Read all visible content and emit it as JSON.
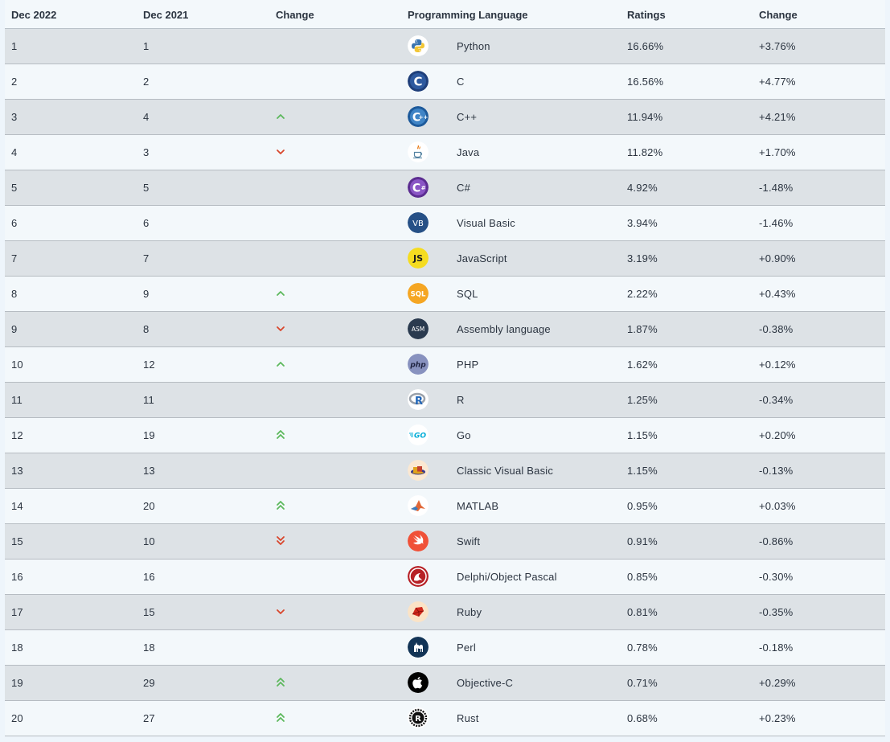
{
  "headers": {
    "rank_now": "Dec 2022",
    "rank_prev": "Dec 2021",
    "trend": "Change",
    "language": "Programming Language",
    "ratings": "Ratings",
    "change": "Change"
  },
  "rows": [
    {
      "rank_now": "1",
      "rank_prev": "1",
      "trend": "none",
      "icon": "python-icon",
      "language": "Python",
      "ratings": "16.66%",
      "change": "+3.76%"
    },
    {
      "rank_now": "2",
      "rank_prev": "2",
      "trend": "none",
      "icon": "c-icon",
      "language": "C",
      "ratings": "16.56%",
      "change": "+4.77%"
    },
    {
      "rank_now": "3",
      "rank_prev": "4",
      "trend": "up",
      "icon": "cpp-icon",
      "language": "C++",
      "ratings": "11.94%",
      "change": "+4.21%"
    },
    {
      "rank_now": "4",
      "rank_prev": "3",
      "trend": "down",
      "icon": "java-icon",
      "language": "Java",
      "ratings": "11.82%",
      "change": "+1.70%"
    },
    {
      "rank_now": "5",
      "rank_prev": "5",
      "trend": "none",
      "icon": "csharp-icon",
      "language": "C#",
      "ratings": "4.92%",
      "change": "-1.48%"
    },
    {
      "rank_now": "6",
      "rank_prev": "6",
      "trend": "none",
      "icon": "visual-basic-icon",
      "language": "Visual Basic",
      "ratings": "3.94%",
      "change": "-1.46%"
    },
    {
      "rank_now": "7",
      "rank_prev": "7",
      "trend": "none",
      "icon": "javascript-icon",
      "language": "JavaScript",
      "ratings": "3.19%",
      "change": "+0.90%"
    },
    {
      "rank_now": "8",
      "rank_prev": "9",
      "trend": "up",
      "icon": "sql-icon",
      "language": "SQL",
      "ratings": "2.22%",
      "change": "+0.43%"
    },
    {
      "rank_now": "9",
      "rank_prev": "8",
      "trend": "down",
      "icon": "assembly-icon",
      "language": "Assembly language",
      "ratings": "1.87%",
      "change": "-0.38%"
    },
    {
      "rank_now": "10",
      "rank_prev": "12",
      "trend": "up",
      "icon": "php-icon",
      "language": "PHP",
      "ratings": "1.62%",
      "change": "+0.12%"
    },
    {
      "rank_now": "11",
      "rank_prev": "11",
      "trend": "none",
      "icon": "r-icon",
      "language": "R",
      "ratings": "1.25%",
      "change": "-0.34%"
    },
    {
      "rank_now": "12",
      "rank_prev": "19",
      "trend": "double-up",
      "icon": "go-icon",
      "language": "Go",
      "ratings": "1.15%",
      "change": "+0.20%"
    },
    {
      "rank_now": "13",
      "rank_prev": "13",
      "trend": "none",
      "icon": "classic-vb-icon",
      "language": "Classic Visual Basic",
      "ratings": "1.15%",
      "change": "-0.13%"
    },
    {
      "rank_now": "14",
      "rank_prev": "20",
      "trend": "double-up",
      "icon": "matlab-icon",
      "language": "MATLAB",
      "ratings": "0.95%",
      "change": "+0.03%"
    },
    {
      "rank_now": "15",
      "rank_prev": "10",
      "trend": "double-down",
      "icon": "swift-icon",
      "language": "Swift",
      "ratings": "0.91%",
      "change": "-0.86%"
    },
    {
      "rank_now": "16",
      "rank_prev": "16",
      "trend": "none",
      "icon": "delphi-icon",
      "language": "Delphi/Object Pascal",
      "ratings": "0.85%",
      "change": "-0.30%"
    },
    {
      "rank_now": "17",
      "rank_prev": "15",
      "trend": "down",
      "icon": "ruby-icon",
      "language": "Ruby",
      "ratings": "0.81%",
      "change": "-0.35%"
    },
    {
      "rank_now": "18",
      "rank_prev": "18",
      "trend": "none",
      "icon": "perl-icon",
      "language": "Perl",
      "ratings": "0.78%",
      "change": "-0.18%"
    },
    {
      "rank_now": "19",
      "rank_prev": "29",
      "trend": "double-up",
      "icon": "objective-c-icon",
      "language": "Objective-C",
      "ratings": "0.71%",
      "change": "+0.29%"
    },
    {
      "rank_now": "20",
      "rank_prev": "27",
      "trend": "double-up",
      "icon": "rust-icon",
      "language": "Rust",
      "ratings": "0.68%",
      "change": "+0.23%"
    }
  ],
  "logo_text": {
    "c": "C",
    "cpp": "C",
    "csharp": "C",
    "vb": "VB",
    "js": "JS",
    "sql": "SQL",
    "asm": "ASM",
    "php": "php",
    "r": "R",
    "go": "GO",
    "rust": "R"
  },
  "colors": {
    "trend_up": "#5cb85c",
    "trend_down": "#d9452b",
    "row_odd": "#dde2e6",
    "row_even": "#f3f8fb"
  }
}
